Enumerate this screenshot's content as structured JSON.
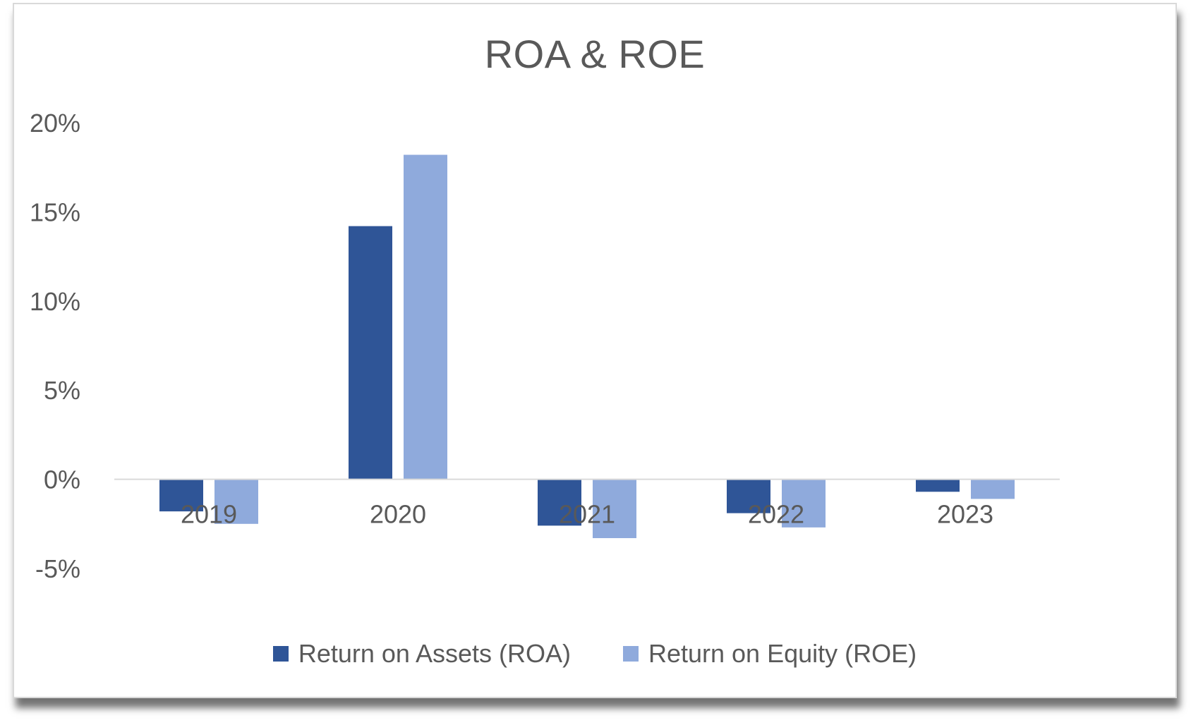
{
  "chart_data": {
    "type": "bar",
    "title": "ROA & ROE",
    "xlabel": "",
    "ylabel": "",
    "categories": [
      "2019",
      "2020",
      "2021",
      "2022",
      "2023"
    ],
    "series": [
      {
        "name": "Return on Assets (ROA)",
        "color": "#2f5597",
        "values": [
          -1.8,
          14.2,
          -2.6,
          -1.9,
          -0.7
        ]
      },
      {
        "name": "Return on Equity (ROE)",
        "color": "#8faadc",
        "values": [
          -2.5,
          18.2,
          -3.3,
          -2.7,
          -1.1
        ]
      }
    ],
    "ylim": [
      -5,
      20
    ],
    "yticks": [
      20,
      15,
      10,
      5,
      0,
      -5
    ],
    "ytick_labels": [
      "20%",
      "15%",
      "10%",
      "5%",
      "0%",
      "-5%"
    ],
    "grid": false,
    "legend_position": "bottom"
  }
}
